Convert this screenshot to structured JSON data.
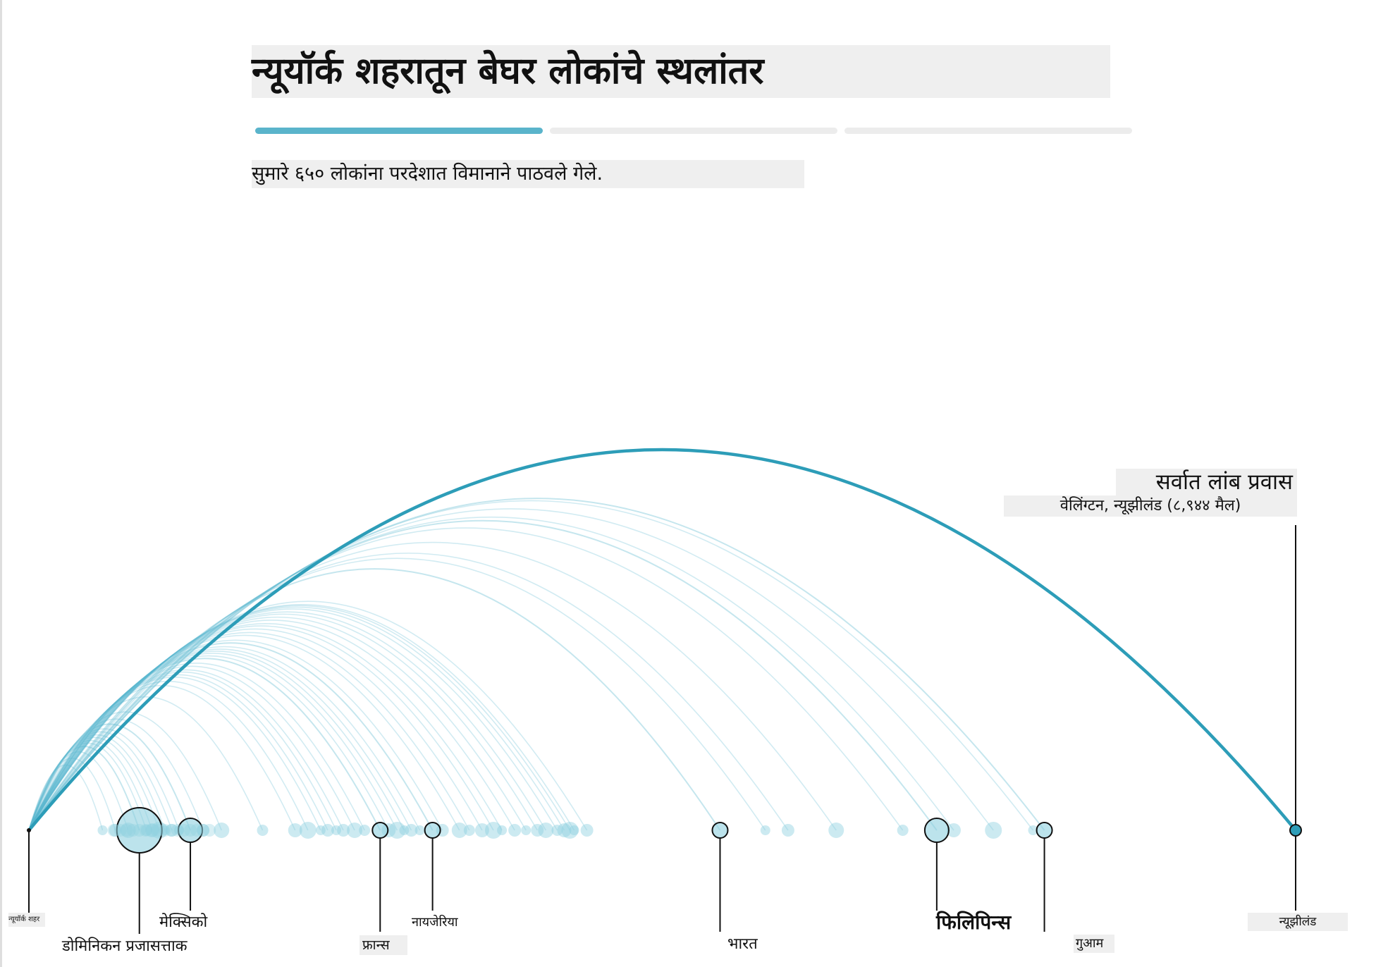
{
  "title": "न्यूयॉर्क शहरातून बेघर लोकांचे स्थलांतर",
  "subtitle": "सुमारे ६५० लोकांना परदेशात विमानाने पाठवले गेले.",
  "progress": {
    "steps": 3,
    "active_index": 0
  },
  "colors": {
    "accent": "#2d9db8",
    "arc": "#58b7cf",
    "dot": "#8fd0e0",
    "progress_active": "#5ab4cb",
    "progress_inactive": "#ececec",
    "label_bg": "#efefef"
  },
  "chart_data": {
    "type": "arc",
    "origin": "न्यूयॉर्क शहर",
    "x_label": "",
    "y_label": "",
    "annotation": {
      "title": "सर्वात लांब प्रवास",
      "detail": "वेलिंग्टन, न्यूझीलंड (८,९४४ मैल)",
      "distance_miles": 8944
    },
    "x_range_miles": [
      0,
      9000
    ],
    "labeled_destinations": [
      {
        "name": "डोमिनिकन प्रजासत्ताक",
        "distance": 780,
        "size": "large"
      },
      {
        "name": "मेक्सिको",
        "distance": 1140,
        "size": "medium"
      },
      {
        "name": "फ्रान्स",
        "distance": 2480,
        "size": "small"
      },
      {
        "name": "नायजेरिया",
        "distance": 2850,
        "size": "small"
      },
      {
        "name": "भारत",
        "distance": 4880,
        "size": "small"
      },
      {
        "name": "फिलिपिन्स",
        "distance": 6410,
        "size": "medium"
      },
      {
        "name": "गुआम",
        "distance": 7170,
        "size": "small"
      },
      {
        "name": "न्यूझीलंड",
        "distance": 8944,
        "size": "small"
      }
    ],
    "other_destination_distances": [
      520,
      610,
      700,
      830,
      870,
      920,
      960,
      1010,
      1060,
      1230,
      1360,
      1650,
      1880,
      1970,
      2060,
      2110,
      2170,
      2220,
      2300,
      2370,
      2540,
      2600,
      2650,
      2700,
      2760,
      2920,
      3040,
      3110,
      3200,
      3280,
      3340,
      3430,
      3510,
      3590,
      3650,
      3730,
      3780,
      3820,
      3850,
      3940,
      5200,
      5360,
      5700,
      6170,
      6530,
      6810,
      7090
    ]
  }
}
